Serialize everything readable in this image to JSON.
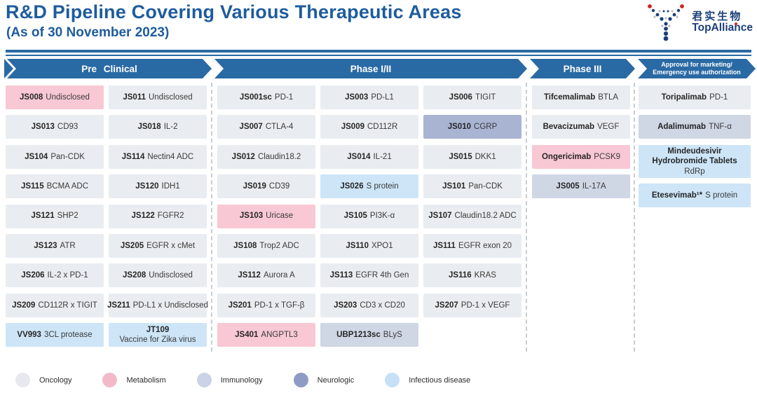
{
  "header": {
    "title": "R&D Pipeline Covering Various Therapeutic Areas",
    "subtitle": "(As of 30 November 2023)",
    "logo": {
      "zh": "君实生物",
      "en": "TopAlliance"
    }
  },
  "chart_data": {
    "type": "table",
    "title": "R&D Pipeline Covering Various Therapeutic Areas (As of 30 November 2023)",
    "stages": [
      "Pre Clinical",
      "Phase I/II",
      "Phase III",
      "Approval for marketing/Emergency use authorization"
    ],
    "therapeutic_area_legend": [
      "Oncology",
      "Metabolism",
      "Immunology",
      "Neurologic",
      "Infectious disease"
    ]
  },
  "phases": [
    {
      "label": "Pre Clinical",
      "columns": [
        [
          {
            "code": "JS008",
            "target": "Undisclosed",
            "area": "metabolism"
          },
          {
            "code": "JS013",
            "target": "CD93",
            "area": "oncology"
          },
          {
            "code": "JS104",
            "target": "Pan-CDK",
            "area": "oncology"
          },
          {
            "code": "JS115",
            "target": "BCMA ADC",
            "area": "oncology"
          },
          {
            "code": "JS121",
            "target": "SHP2",
            "area": "oncology"
          },
          {
            "code": "JS123",
            "target": "ATR",
            "area": "oncology"
          },
          {
            "code": "JS206",
            "target": "IL-2 x PD-1",
            "area": "oncology"
          },
          {
            "code": "JS209",
            "target": "CD112R x TIGIT",
            "area": "oncology"
          },
          {
            "code": "VV993",
            "target": "3CL protease",
            "area": "infectious"
          }
        ],
        [
          {
            "code": "JS011",
            "target": "Undisclosed",
            "area": "oncology"
          },
          {
            "code": "JS018",
            "target": "IL-2",
            "area": "oncology"
          },
          {
            "code": "JS114",
            "target": "Nectin4 ADC",
            "area": "oncology"
          },
          {
            "code": "JS120",
            "target": "IDH1",
            "area": "oncology"
          },
          {
            "code": "JS122",
            "target": "FGFR2",
            "area": "oncology"
          },
          {
            "code": "JS205",
            "target": "EGFR x cMet",
            "area": "oncology"
          },
          {
            "code": "JS208",
            "target": "Undisclosed",
            "area": "oncology"
          },
          {
            "code": "JS211",
            "target": "PD-L1 x Undisclosed",
            "area": "oncology"
          },
          {
            "code": "JT109",
            "target": "Vaccine for Zika virus",
            "area": "infectious",
            "stacked": true
          }
        ]
      ]
    },
    {
      "label": "Phase I/II",
      "columns": [
        [
          {
            "code": "JS001sc",
            "target": "PD-1",
            "area": "oncology"
          },
          {
            "code": "JS007",
            "target": "CTLA-4",
            "area": "oncology"
          },
          {
            "code": "JS012",
            "target": "Claudin18.2",
            "area": "oncology"
          },
          {
            "code": "JS019",
            "target": "CD39",
            "area": "oncology"
          },
          {
            "code": "JS103",
            "target": "Uricase",
            "area": "metabolism"
          },
          {
            "code": "JS108",
            "target": "Trop2 ADC",
            "area": "oncology"
          },
          {
            "code": "JS112",
            "target": "Aurora A",
            "area": "oncology"
          },
          {
            "code": "JS201",
            "target": "PD-1 x TGF-β",
            "area": "oncology"
          },
          {
            "code": "JS401",
            "target": "ANGPTL3",
            "area": "metabolism"
          }
        ],
        [
          {
            "code": "JS003",
            "target": "PD-L1",
            "area": "oncology"
          },
          {
            "code": "JS009",
            "target": "CD112R",
            "area": "oncology"
          },
          {
            "code": "JS014",
            "target": "IL-21",
            "area": "oncology"
          },
          {
            "code": "JS026",
            "target": "S protein",
            "area": "infectious"
          },
          {
            "code": "JS105",
            "target": "PI3K-α",
            "area": "oncology"
          },
          {
            "code": "JS110",
            "target": "XPO1",
            "area": "oncology"
          },
          {
            "code": "JS113",
            "target": "EGFR 4th Gen",
            "area": "oncology"
          },
          {
            "code": "JS203",
            "target": "CD3 x CD20",
            "area": "oncology"
          },
          {
            "code": "UBP1213sc",
            "target": "BLyS",
            "area": "immunology"
          }
        ],
        [
          {
            "code": "JS006",
            "target": "TIGIT",
            "area": "oncology"
          },
          {
            "code": "JS010",
            "target": "CGRP",
            "area": "neurologic"
          },
          {
            "code": "JS015",
            "target": "DKK1",
            "area": "oncology"
          },
          {
            "code": "JS101",
            "target": "Pan-CDK",
            "area": "oncology"
          },
          {
            "code": "JS107",
            "target": "Claudin18.2 ADC",
            "area": "oncology"
          },
          {
            "code": "JS111",
            "target": "EGFR exon 20",
            "area": "oncology"
          },
          {
            "code": "JS116",
            "target": "KRAS",
            "area": "oncology"
          },
          {
            "code": "JS207",
            "target": "PD-1 x VEGF",
            "area": "oncology"
          }
        ]
      ]
    },
    {
      "label": "Phase III",
      "columns": [
        [
          {
            "code": "Tifcemalimab",
            "target": "BTLA",
            "area": "oncology"
          },
          {
            "code": "Bevacizumab",
            "target": "VEGF",
            "area": "oncology"
          },
          {
            "code": "Ongericimab",
            "target": "PCSK9",
            "area": "metabolism"
          },
          {
            "code": "JS005",
            "target": "IL-17A",
            "area": "immunology"
          }
        ]
      ]
    },
    {
      "label_line1": "Approval for marketing/",
      "label_line2": "Emergency use authorization",
      "columns": [
        [
          {
            "code": "Toripalimab",
            "target": "PD-1",
            "area": "oncology"
          },
          {
            "code": "Adalimumab",
            "target": "TNF-α",
            "area": "immunology"
          },
          {
            "code": "Mindeudesivir Hydrobromide Tablets",
            "target": "RdRp",
            "area": "infectious",
            "stacked": true
          },
          {
            "code": "Etesevimab¹*",
            "target": "S protein",
            "area": "infectious"
          }
        ]
      ]
    }
  ],
  "legend": [
    {
      "label": "Oncology",
      "color": "#e7e9ee"
    },
    {
      "label": "Metabolism",
      "color": "#f4b9c9"
    },
    {
      "label": "Immunology",
      "color": "#cbd3e6"
    },
    {
      "label": "Neurologic",
      "color": "#8e9cc5"
    },
    {
      "label": "Infectious disease",
      "color": "#c6e0f6"
    }
  ],
  "colors": {
    "banner": "#2a6aa4",
    "title": "#1e5c9e",
    "cell_oncology": "#e9ecf1",
    "cell_metabolism": "#f8c8d4",
    "cell_immunology": "#cfd6e4",
    "cell_neurologic": "#a9b4d2",
    "cell_infectious": "#cde5f7"
  }
}
